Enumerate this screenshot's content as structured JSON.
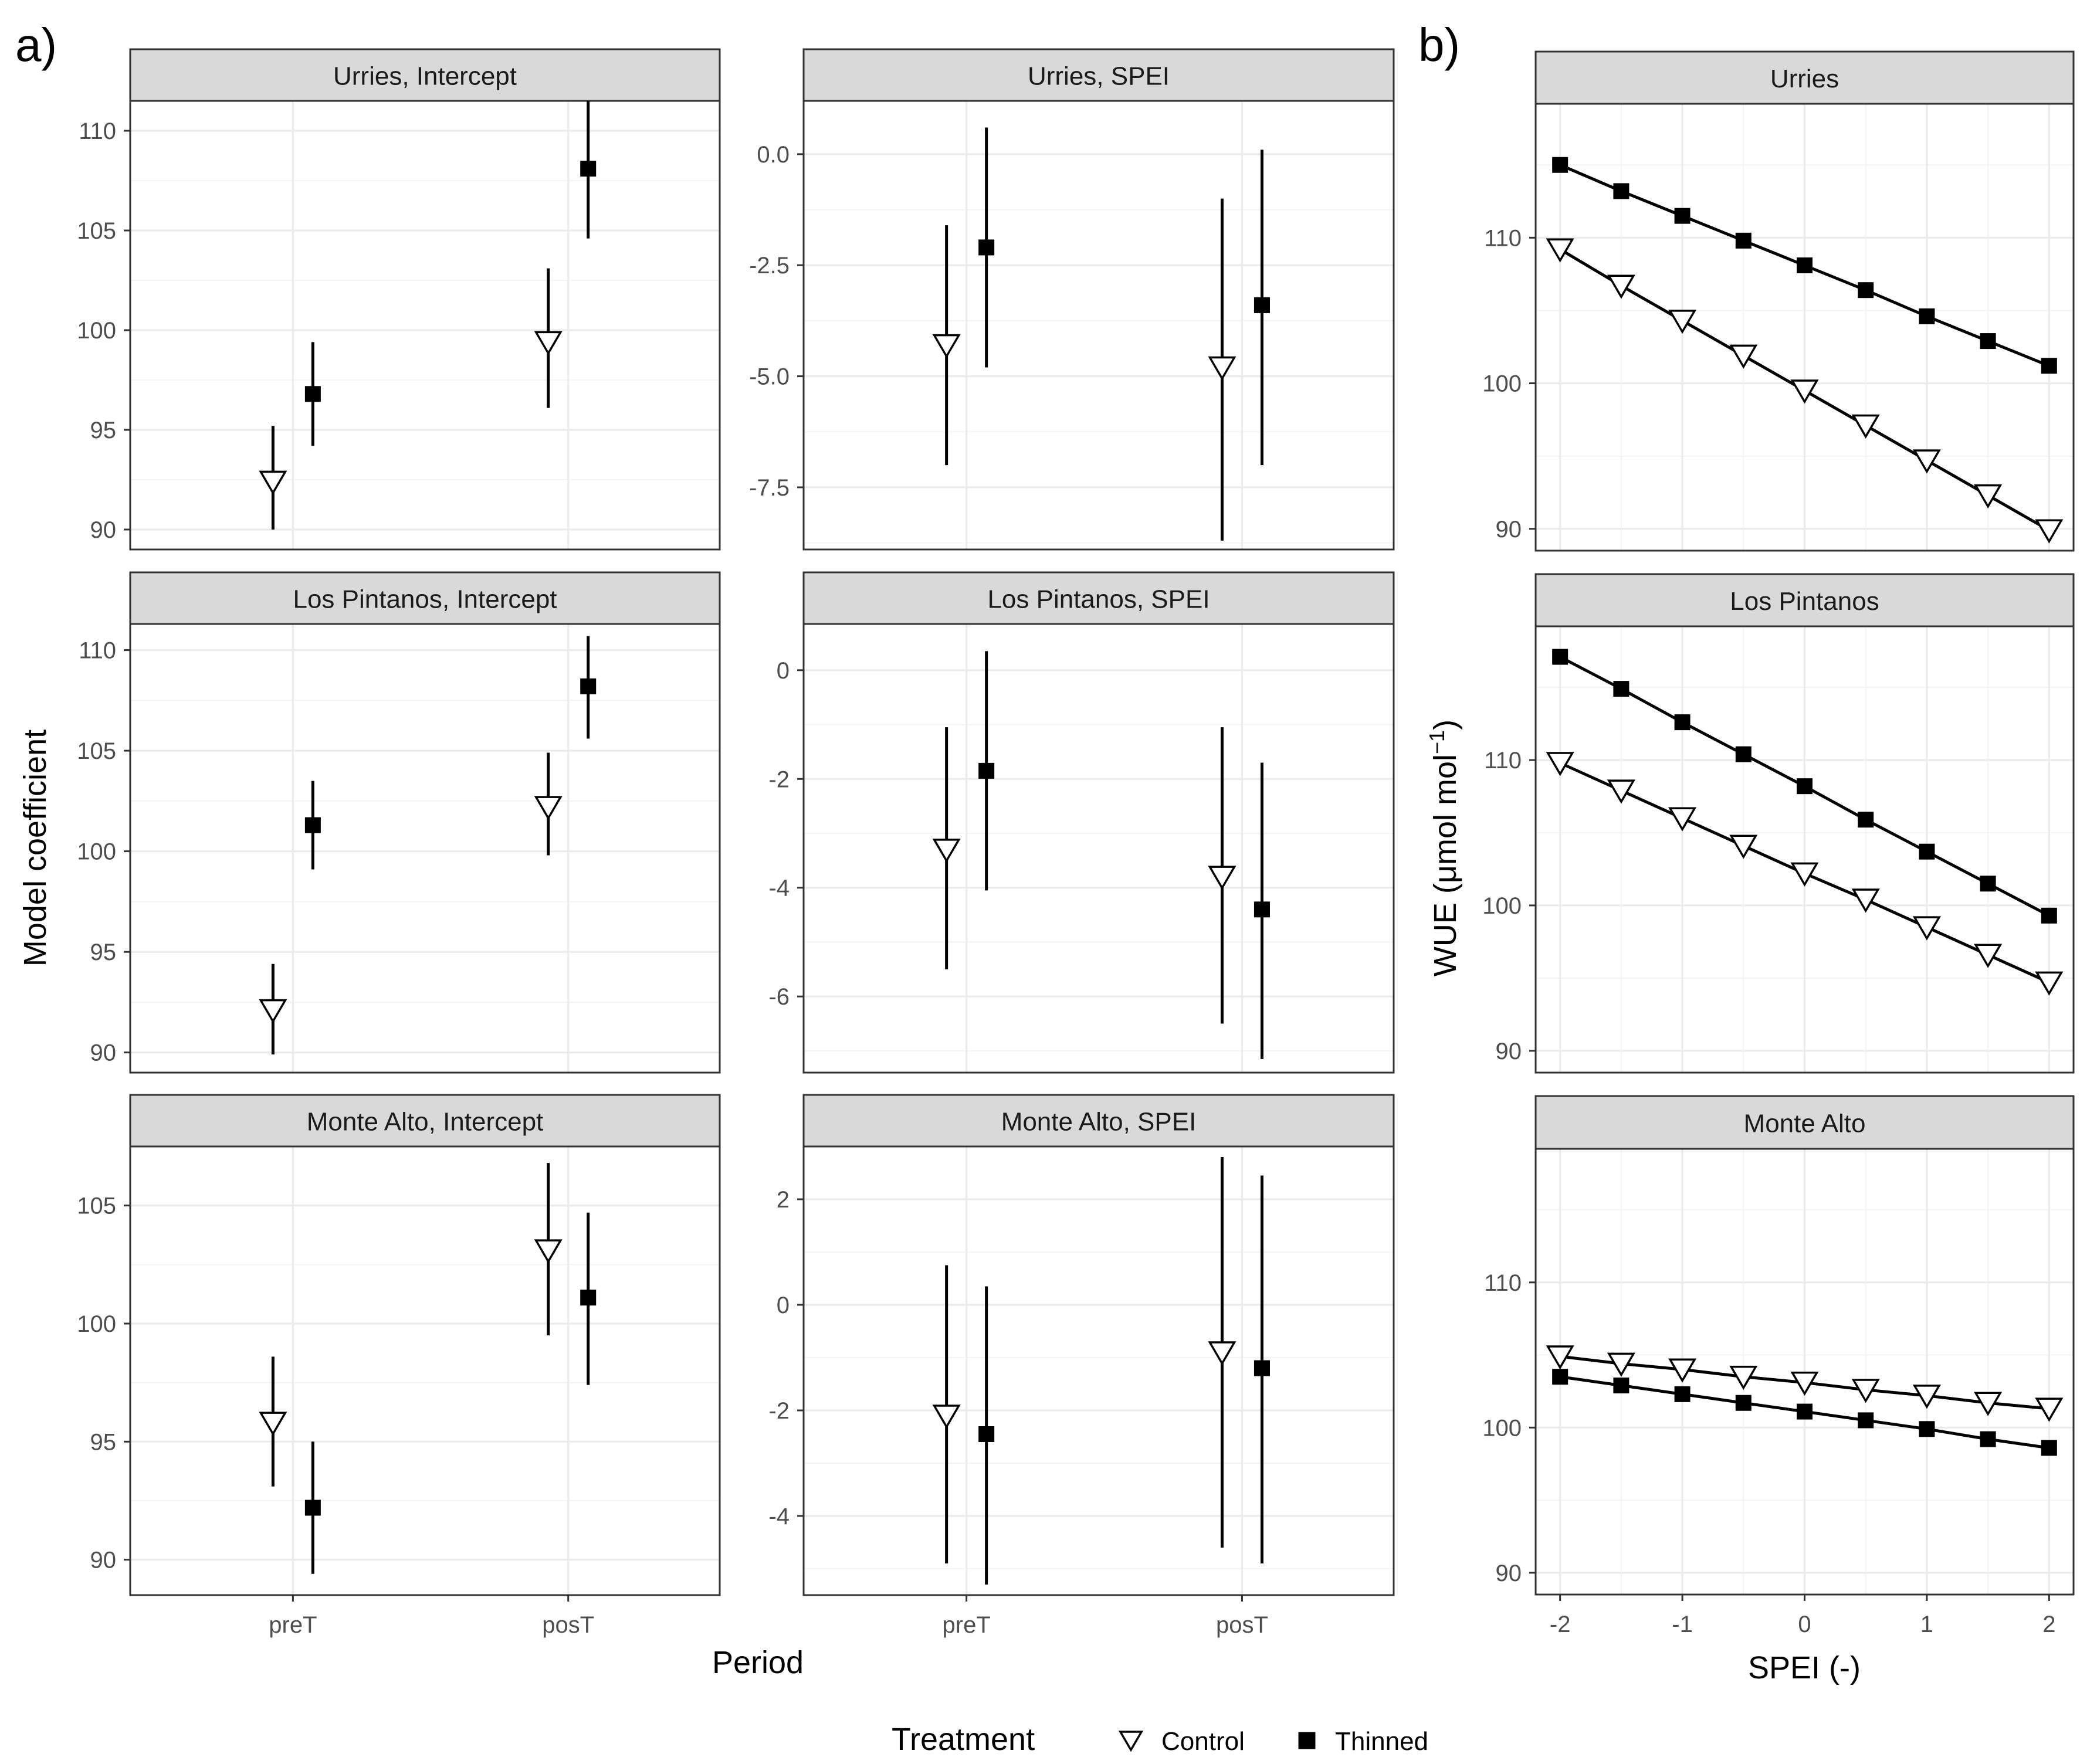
{
  "labels": {
    "panel_a": "a)",
    "panel_b": "b)",
    "ylabel_a": "Model coefficient",
    "xlabel_a": "Period",
    "ylabel_b_main": "WUE (μmol mol",
    "ylabel_b_sup": "−1",
    "ylabel_b_close": ")",
    "xlabel_b": "SPEI (-)"
  },
  "legend": {
    "title": "Treatment",
    "items": [
      {
        "label": "Control",
        "symbol": "down-triangle-open"
      },
      {
        "label": "Thinned",
        "symbol": "square-filled"
      }
    ]
  },
  "colors": {
    "strip": "#d9d9d9",
    "grid": "#ebebeb",
    "border": "#333333",
    "marks": "#000000"
  },
  "chart_data": [
    {
      "type": "scatter",
      "panel": "a",
      "title": "Urries, Intercept",
      "x_categories": [
        "preT",
        "posT"
      ],
      "ylim": [
        89,
        111.5
      ],
      "yticks": [
        90,
        95,
        100,
        105,
        110
      ],
      "series": [
        {
          "name": "Control",
          "points": [
            {
              "x": "preT",
              "y": 92.4,
              "lo": 90.0,
              "hi": 95.2
            },
            {
              "x": "posT",
              "y": 99.4,
              "lo": 96.1,
              "hi": 103.1
            }
          ]
        },
        {
          "name": "Thinned",
          "points": [
            {
              "x": "preT",
              "y": 96.8,
              "lo": 94.2,
              "hi": 99.4
            },
            {
              "x": "posT",
              "y": 108.1,
              "lo": 104.6,
              "hi": 111.5
            }
          ]
        }
      ]
    },
    {
      "type": "scatter",
      "panel": "a",
      "title": "Urries, SPEI",
      "x_categories": [
        "preT",
        "posT"
      ],
      "ylim": [
        -8.9,
        1.2
      ],
      "yticks": [
        0.0,
        -2.5,
        -5.0,
        -7.5
      ],
      "tick_decimals": 1,
      "series": [
        {
          "name": "Control",
          "points": [
            {
              "x": "preT",
              "y": -4.3,
              "lo": -7.0,
              "hi": -1.6
            },
            {
              "x": "posT",
              "y": -4.8,
              "lo": -8.7,
              "hi": -1.0
            }
          ]
        },
        {
          "name": "Thinned",
          "points": [
            {
              "x": "preT",
              "y": -2.1,
              "lo": -4.8,
              "hi": 0.6
            },
            {
              "x": "posT",
              "y": -3.4,
              "lo": -7.0,
              "hi": 0.1
            }
          ]
        }
      ]
    },
    {
      "type": "scatter",
      "panel": "a",
      "title": "Los Pintanos, Intercept",
      "x_categories": [
        "preT",
        "posT"
      ],
      "ylim": [
        89,
        111.3
      ],
      "yticks": [
        90,
        95,
        100,
        105,
        110
      ],
      "series": [
        {
          "name": "Control",
          "points": [
            {
              "x": "preT",
              "y": 92.1,
              "lo": 89.9,
              "hi": 94.4
            },
            {
              "x": "posT",
              "y": 102.2,
              "lo": 99.8,
              "hi": 104.9
            }
          ]
        },
        {
          "name": "Thinned",
          "points": [
            {
              "x": "preT",
              "y": 101.3,
              "lo": 99.1,
              "hi": 103.5
            },
            {
              "x": "posT",
              "y": 108.2,
              "lo": 105.6,
              "hi": 110.7
            }
          ]
        }
      ]
    },
    {
      "type": "scatter",
      "panel": "a",
      "title": "Los Pintanos, SPEI",
      "x_categories": [
        "preT",
        "posT"
      ],
      "ylim": [
        -7.4,
        0.85
      ],
      "yticks": [
        0,
        -2,
        -4,
        -6
      ],
      "tick_decimals": 0,
      "series": [
        {
          "name": "Control",
          "points": [
            {
              "x": "preT",
              "y": -3.3,
              "lo": -5.5,
              "hi": -1.05
            },
            {
              "x": "posT",
              "y": -3.8,
              "lo": -6.5,
              "hi": -1.05
            }
          ]
        },
        {
          "name": "Thinned",
          "points": [
            {
              "x": "preT",
              "y": -1.85,
              "lo": -4.05,
              "hi": 0.35
            },
            {
              "x": "posT",
              "y": -4.4,
              "lo": -7.15,
              "hi": -1.7
            }
          ]
        }
      ]
    },
    {
      "type": "scatter",
      "panel": "a",
      "title": "Monte Alto, Intercept",
      "x_categories": [
        "preT",
        "posT"
      ],
      "ylim": [
        88.5,
        107.5
      ],
      "yticks": [
        90,
        95,
        100,
        105
      ],
      "series": [
        {
          "name": "Control",
          "points": [
            {
              "x": "preT",
              "y": 95.8,
              "lo": 93.1,
              "hi": 98.6
            },
            {
              "x": "posT",
              "y": 103.1,
              "lo": 99.5,
              "hi": 106.8
            }
          ]
        },
        {
          "name": "Thinned",
          "points": [
            {
              "x": "preT",
              "y": 92.2,
              "lo": 89.4,
              "hi": 95.0
            },
            {
              "x": "posT",
              "y": 101.1,
              "lo": 97.4,
              "hi": 104.7
            }
          ]
        }
      ]
    },
    {
      "type": "scatter",
      "panel": "a",
      "title": "Monte Alto, SPEI",
      "x_categories": [
        "preT",
        "posT"
      ],
      "ylim": [
        -5.5,
        3.0
      ],
      "yticks": [
        2,
        0,
        -2,
        -4
      ],
      "tick_decimals": 0,
      "series": [
        {
          "name": "Control",
          "points": [
            {
              "x": "preT",
              "y": -2.1,
              "lo": -4.9,
              "hi": 0.75
            },
            {
              "x": "posT",
              "y": -0.9,
              "lo": -4.6,
              "hi": 2.8
            }
          ]
        },
        {
          "name": "Thinned",
          "points": [
            {
              "x": "preT",
              "y": -2.45,
              "lo": -5.3,
              "hi": 0.35
            },
            {
              "x": "posT",
              "y": -1.2,
              "lo": -4.9,
              "hi": 2.45
            }
          ]
        }
      ]
    },
    {
      "type": "line",
      "panel": "b",
      "title": "Urries",
      "x": [
        -2,
        -1.5,
        -1,
        -0.5,
        0,
        0.5,
        1,
        1.5,
        2
      ],
      "xlim": [
        -2.2,
        2.2
      ],
      "xticks": [
        -2,
        -1,
        0,
        1,
        2
      ],
      "ylim": [
        88.5,
        119.2
      ],
      "yticks": [
        90,
        100,
        110
      ],
      "series": [
        {
          "name": "Thinned",
          "values": [
            115.0,
            113.2,
            111.5,
            109.8,
            108.1,
            106.4,
            104.6,
            102.9,
            101.2
          ]
        },
        {
          "name": "Control",
          "values": [
            109.2,
            106.7,
            104.3,
            101.9,
            99.5,
            97.1,
            94.7,
            92.3,
            89.9
          ]
        }
      ]
    },
    {
      "type": "line",
      "panel": "b",
      "title": "Los Pintanos",
      "x": [
        -2,
        -1.5,
        -1,
        -0.5,
        0,
        0.5,
        1,
        1.5,
        2
      ],
      "xlim": [
        -2.2,
        2.2
      ],
      "xticks": [
        -2,
        -1,
        0,
        1,
        2
      ],
      "ylim": [
        88.5,
        119.2
      ],
      "yticks": [
        90,
        100,
        110
      ],
      "series": [
        {
          "name": "Thinned",
          "values": [
            117.1,
            114.9,
            112.6,
            110.4,
            108.2,
            105.9,
            103.7,
            101.5,
            99.3
          ]
        },
        {
          "name": "Control",
          "values": [
            109.8,
            107.9,
            106.0,
            104.1,
            102.2,
            100.4,
            98.5,
            96.6,
            94.7
          ]
        }
      ]
    },
    {
      "type": "line",
      "panel": "b",
      "title": "Monte Alto",
      "x": [
        -2,
        -1.5,
        -1,
        -0.5,
        0,
        0.5,
        1,
        1.5,
        2
      ],
      "xlim": [
        -2.2,
        2.2
      ],
      "xticks": [
        -2,
        -1,
        0,
        1,
        2
      ],
      "ylim": [
        88.5,
        119.2
      ],
      "yticks": [
        90,
        100,
        110
      ],
      "series": [
        {
          "name": "Control",
          "values": [
            104.9,
            104.4,
            104.0,
            103.5,
            103.1,
            102.6,
            102.2,
            101.7,
            101.3
          ]
        },
        {
          "name": "Thinned",
          "values": [
            103.5,
            102.9,
            102.3,
            101.7,
            101.1,
            100.5,
            99.9,
            99.2,
            98.6
          ]
        }
      ]
    }
  ]
}
